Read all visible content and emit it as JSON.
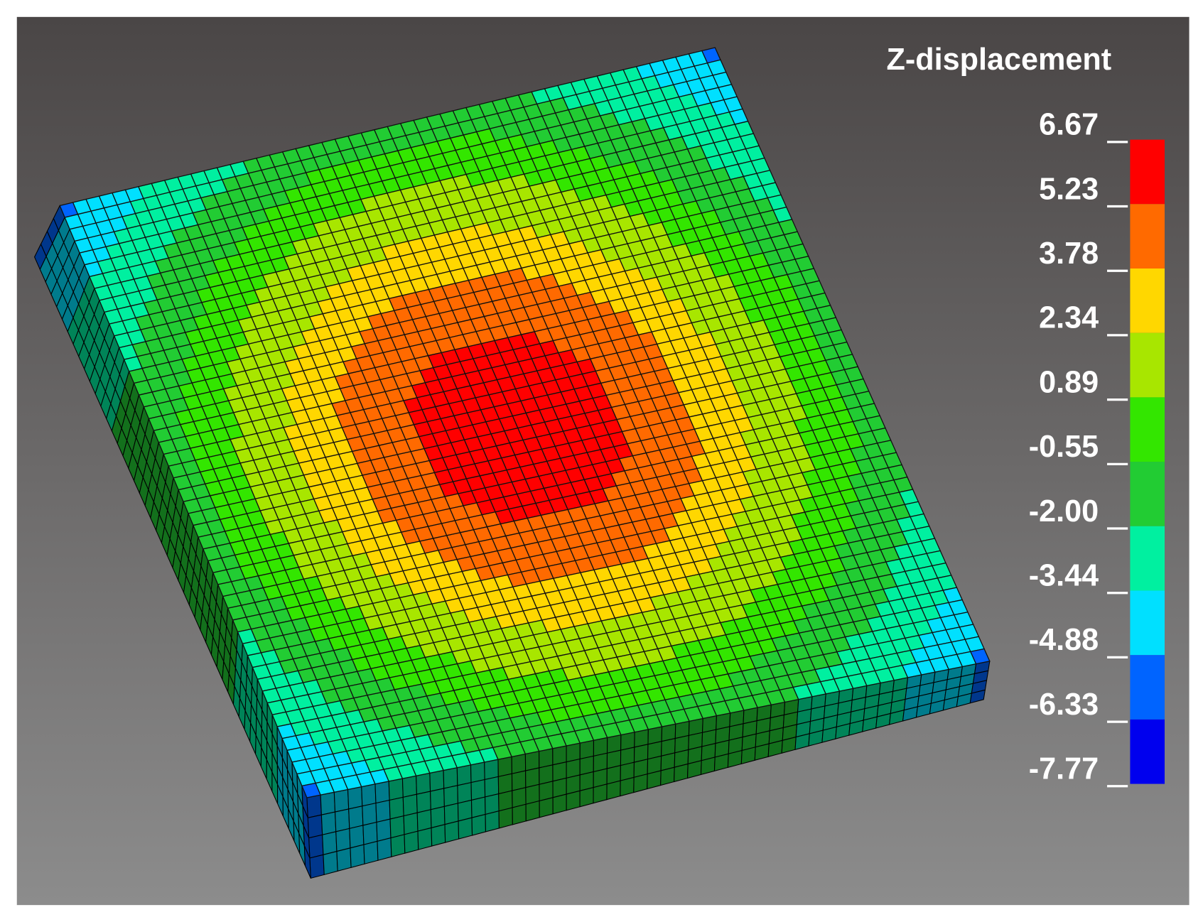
{
  "legend": {
    "title": "Z-displacement",
    "ticks": [
      "6.67",
      "5.23",
      "3.78",
      "2.34",
      "0.89",
      "-0.55",
      "-2.00",
      "-3.44",
      "-4.88",
      "-6.33",
      "-7.77"
    ],
    "colors": [
      "#ff0000",
      "#ff6a00",
      "#ffd700",
      "#a8e600",
      "#33e600",
      "#22cc33",
      "#00f0a0",
      "#00e0ff",
      "#0064ff",
      "#0000ee"
    ]
  }
}
